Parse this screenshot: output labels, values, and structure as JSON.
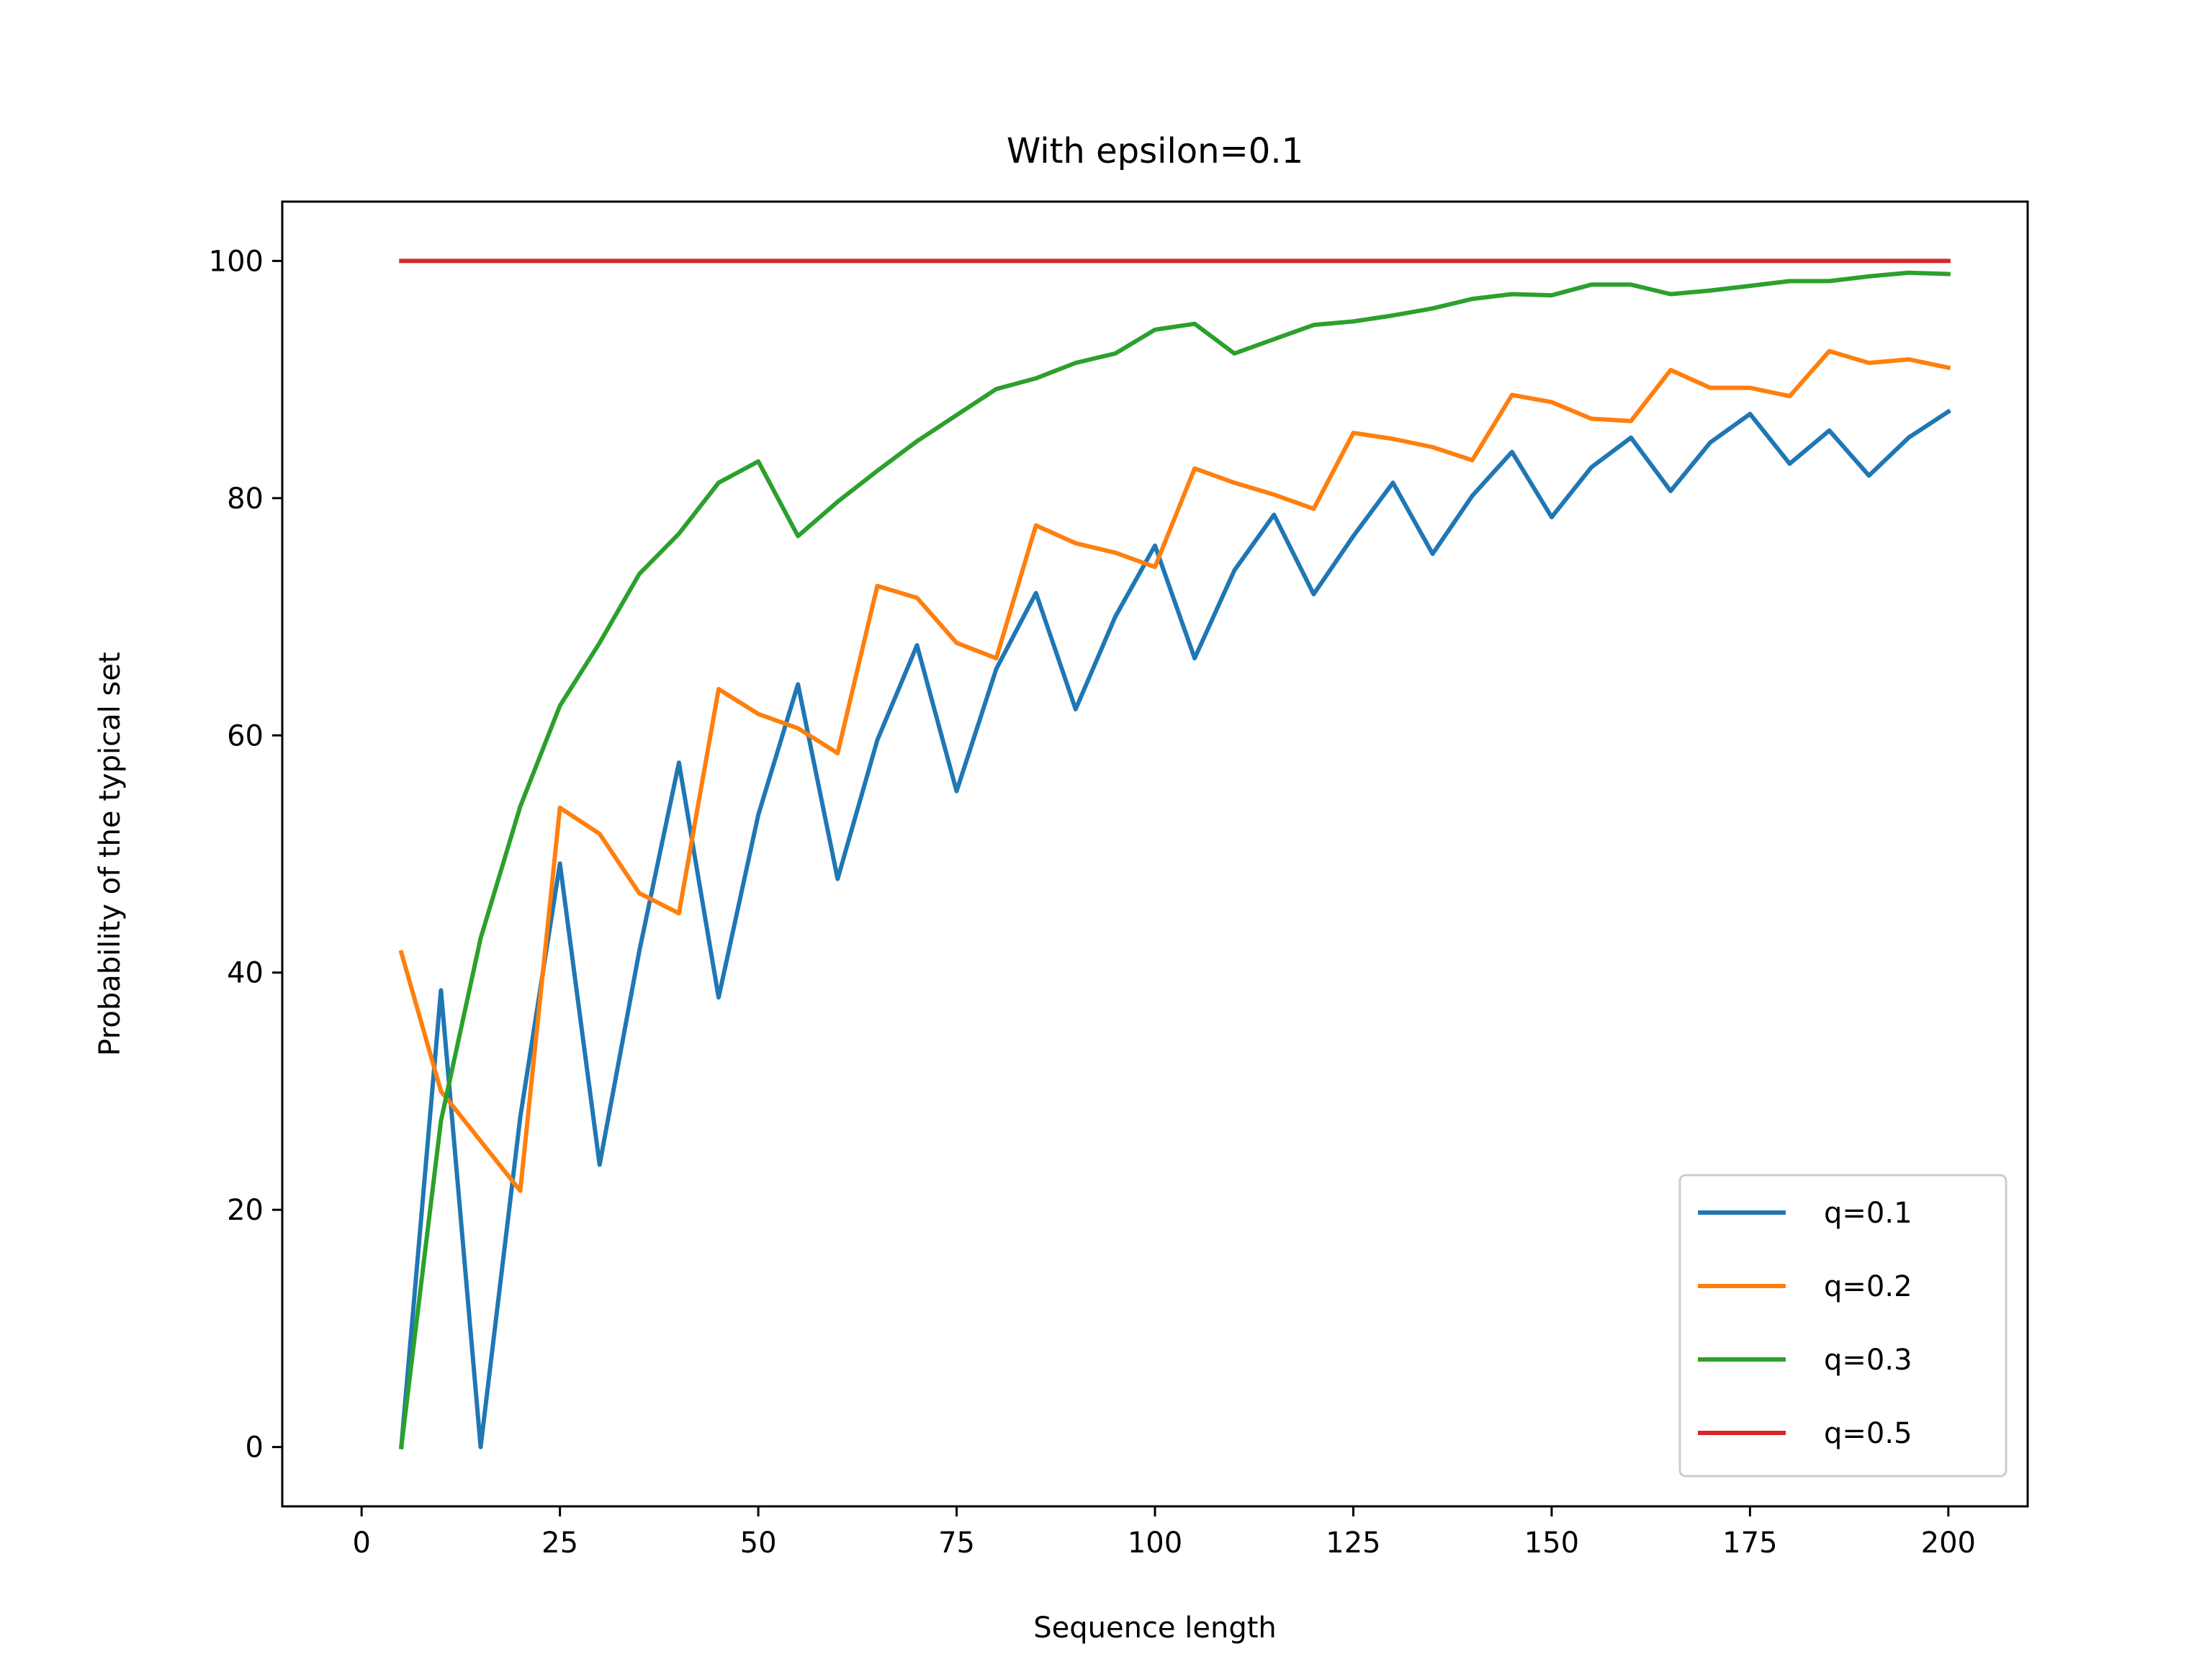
{
  "chart_data": {
    "type": "line",
    "title": "With epsilon=0.1",
    "xlabel": "Sequence length",
    "ylabel": "Probability of the typical set",
    "xlim": [
      -10,
      210
    ],
    "ylim": [
      -5,
      105
    ],
    "xticks": [
      0,
      25,
      50,
      75,
      100,
      125,
      150,
      175,
      200
    ],
    "yticks": [
      0,
      20,
      40,
      60,
      80,
      100
    ],
    "grid": false,
    "legend_position": "lower right",
    "x": [
      5,
      10,
      15,
      20,
      25,
      30,
      35,
      40,
      45,
      50,
      55,
      60,
      65,
      70,
      75,
      80,
      85,
      90,
      95,
      100,
      105,
      110,
      115,
      120,
      125,
      130,
      135,
      140,
      145,
      150,
      155,
      160,
      165,
      170,
      175,
      180,
      185,
      190,
      195,
      200
    ],
    "series": [
      {
        "name": "q=0.1",
        "color": "#1f77b4",
        "values": [
          0,
          38.5,
          0,
          27.8,
          49.2,
          23.8,
          41.8,
          57.7,
          37.9,
          53.3,
          64.3,
          47.9,
          59.6,
          67.6,
          55.3,
          65.6,
          72.0,
          62.2,
          70.0,
          76.0,
          66.5,
          73.9,
          78.6,
          71.9,
          76.8,
          81.3,
          75.3,
          80.2,
          83.9,
          78.4,
          82.6,
          85.1,
          80.6,
          84.7,
          87.1,
          82.9,
          85.7,
          81.9,
          85.1,
          87.3
        ]
      },
      {
        "name": "q=0.2",
        "color": "#ff7f0e",
        "values": [
          41.7,
          30.0,
          25.8,
          21.6,
          53.9,
          51.7,
          46.7,
          45.0,
          63.9,
          61.8,
          60.6,
          58.5,
          72.6,
          71.6,
          67.8,
          66.5,
          77.7,
          76.2,
          75.4,
          74.2,
          82.5,
          81.3,
          80.3,
          79.1,
          85.5,
          85.0,
          84.3,
          83.2,
          88.7,
          88.1,
          86.7,
          86.5,
          90.8,
          89.3,
          89.3,
          88.6,
          92.4,
          91.4,
          91.7,
          91.0
        ]
      },
      {
        "name": "q=0.3",
        "color": "#2ca02c",
        "values": [
          0,
          27.5,
          42.9,
          54.0,
          62.5,
          67.8,
          73.6,
          77.0,
          81.3,
          83.1,
          76.8,
          79.7,
          82.3,
          84.8,
          87.0,
          89.2,
          90.1,
          91.4,
          92.2,
          94.2,
          94.7,
          92.2,
          93.4,
          94.6,
          94.9,
          95.4,
          96.0,
          96.8,
          97.2,
          97.1,
          98.0,
          98.0,
          97.2,
          97.5,
          97.9,
          98.3,
          98.3,
          98.7,
          99.0,
          98.9
        ]
      },
      {
        "name": "q=0.5",
        "color": "#d62728",
        "values": [
          100,
          100,
          100,
          100,
          100,
          100,
          100,
          100,
          100,
          100,
          100,
          100,
          100,
          100,
          100,
          100,
          100,
          100,
          100,
          100,
          100,
          100,
          100,
          100,
          100,
          100,
          100,
          100,
          100,
          100,
          100,
          100,
          100,
          100,
          100,
          100,
          100,
          100,
          100,
          100
        ]
      }
    ]
  }
}
